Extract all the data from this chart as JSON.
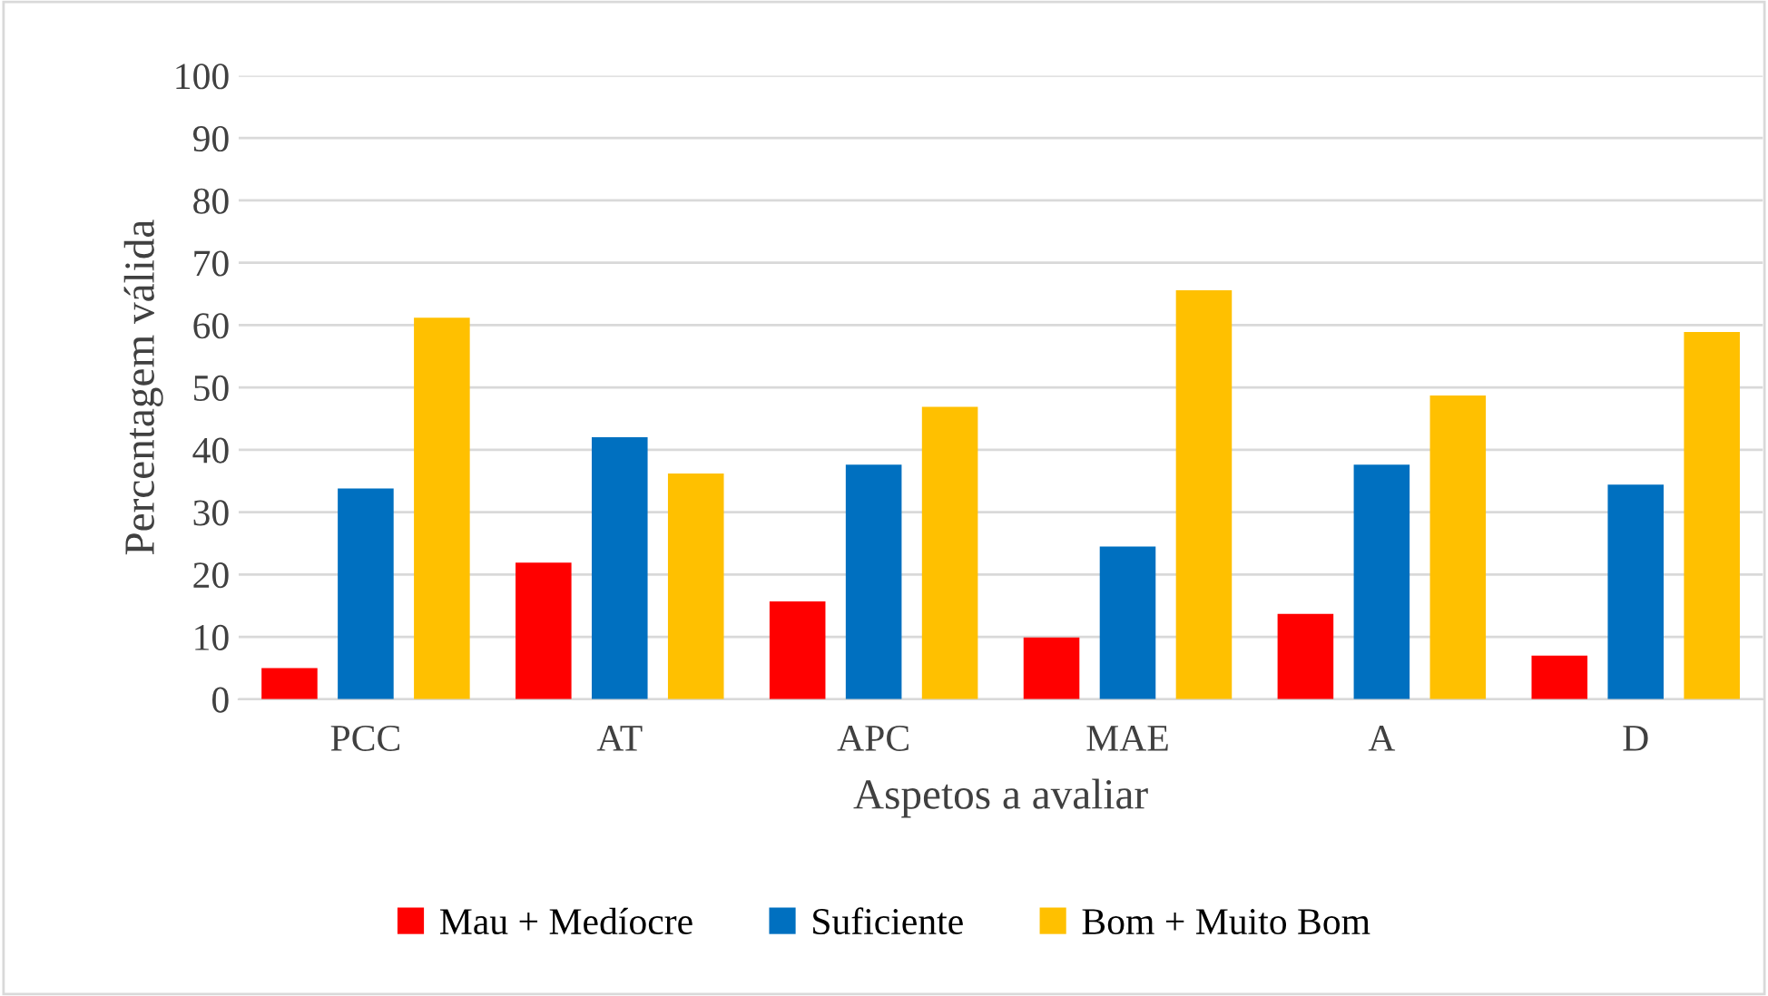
{
  "chart_data": {
    "type": "bar",
    "xlabel": "Aspetos a avaliar",
    "ylabel": "Percentagem válida",
    "categories": [
      "PCC",
      "AT",
      "APC",
      "MAE",
      "A",
      "D"
    ],
    "series": [
      {
        "name": "Mau + Medíocre",
        "color": "#ff0000",
        "values": [
          5.0,
          21.9,
          15.7,
          9.9,
          13.7,
          7.0
        ]
      },
      {
        "name": "Suficiente",
        "color": "#0070c0",
        "values": [
          33.8,
          42.0,
          37.6,
          24.5,
          37.6,
          34.4
        ]
      },
      {
        "name": "Bom + Muito Bom",
        "color": "#ffc000",
        "values": [
          61.2,
          36.2,
          46.9,
          65.6,
          48.7,
          58.9
        ]
      }
    ],
    "ylim": [
      0,
      100
    ],
    "yticks": [
      0,
      10,
      20,
      30,
      40,
      50,
      60,
      70,
      80,
      90,
      100
    ],
    "grid": "y",
    "legend": "bottom"
  }
}
